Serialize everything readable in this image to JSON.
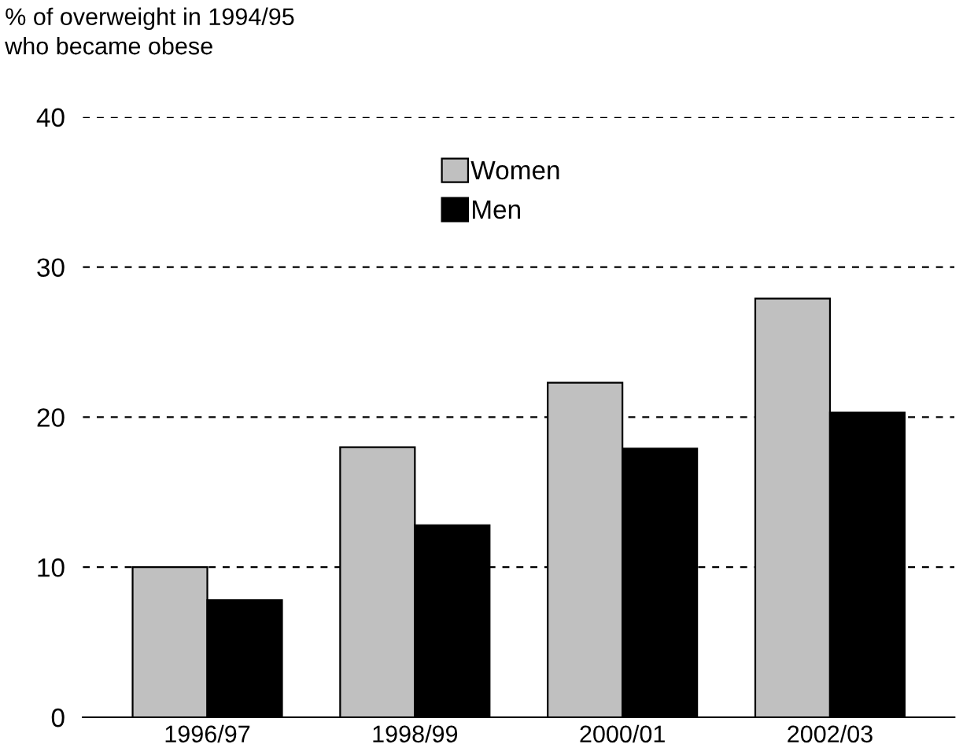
{
  "chart_data": {
    "type": "bar",
    "ylabel": "% of overweight in 1994/95\nwho became obese",
    "categories": [
      "1996/97",
      "1998/99",
      "2000/01",
      "2002/03"
    ],
    "series": [
      {
        "name": "Women",
        "color": "#c0c0c0",
        "values": [
          10.0,
          18.0,
          22.3,
          27.9
        ]
      },
      {
        "name": "Men",
        "color": "#000000",
        "values": [
          7.8,
          12.8,
          17.9,
          20.3
        ]
      }
    ],
    "ylim": [
      0,
      40
    ],
    "yticks": [
      0,
      10,
      20,
      30,
      40
    ],
    "grid": "y",
    "legend": "top"
  }
}
